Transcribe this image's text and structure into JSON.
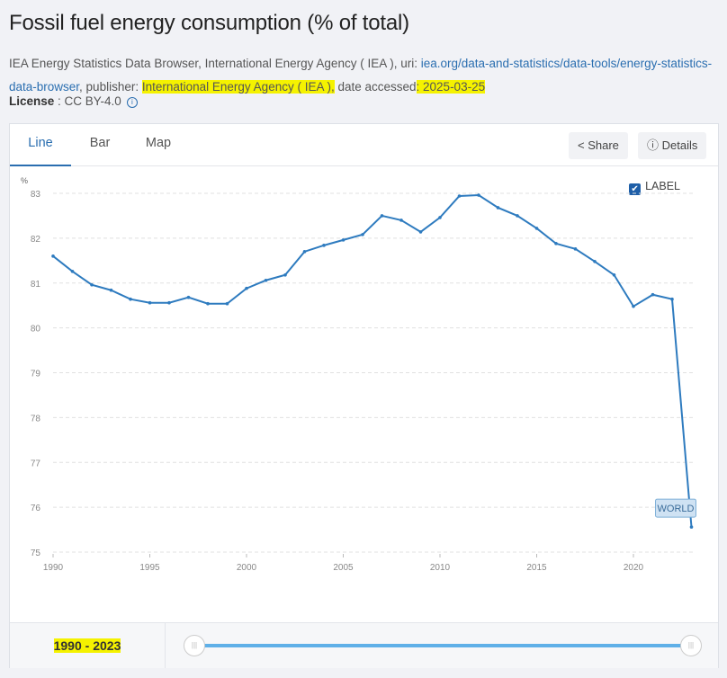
{
  "title": "Fossil fuel energy consumption (% of total)",
  "source": {
    "prefix": "IEA Energy Statistics Data Browser, International Energy Agency ( IEA ), uri: ",
    "uri": "iea.org/data-and-statistics/data-tools/energy-statistics-data-browser",
    "publisher_label": ", publisher: ",
    "publisher": "International Energy Agency ( IEA ),",
    "date_label": " date accessed",
    "date": ": 2025-03-25"
  },
  "license": {
    "label": "License",
    "value": " : CC BY-4.0"
  },
  "tabs": [
    "Line",
    "Bar",
    "Map"
  ],
  "buttons": {
    "share": "Share",
    "details": "Details"
  },
  "label_toggle": {
    "text": "LABEL",
    "checked": true
  },
  "range": {
    "start": "1990",
    "sep": " - ",
    "end": "2023"
  },
  "chart_data": {
    "type": "line",
    "ylabel": "%",
    "ylim": [
      75,
      83
    ],
    "yticks": [
      75,
      76,
      77,
      78,
      79,
      80,
      81,
      82,
      83
    ],
    "xticks": [
      1990,
      1995,
      2000,
      2005,
      2010,
      2015,
      2020
    ],
    "grid": true,
    "color": "#2e7bbf",
    "series": [
      {
        "name": "WORLD",
        "x": [
          1990,
          1991,
          1992,
          1993,
          1994,
          1995,
          1996,
          1997,
          1998,
          1999,
          2000,
          2001,
          2002,
          2003,
          2004,
          2005,
          2006,
          2007,
          2008,
          2009,
          2010,
          2011,
          2012,
          2013,
          2014,
          2015,
          2016,
          2017,
          2018,
          2019,
          2020,
          2021,
          2022,
          2023
        ],
        "y": [
          81.6,
          81.26,
          80.96,
          80.84,
          80.64,
          80.56,
          80.56,
          80.68,
          80.54,
          80.54,
          80.88,
          81.06,
          81.18,
          81.7,
          81.84,
          81.96,
          82.08,
          82.5,
          82.4,
          82.14,
          82.46,
          82.94,
          82.96,
          82.68,
          82.5,
          82.22,
          81.88,
          81.76,
          81.48,
          81.18,
          80.48,
          80.74,
          80.64,
          75.56
        ]
      }
    ]
  }
}
